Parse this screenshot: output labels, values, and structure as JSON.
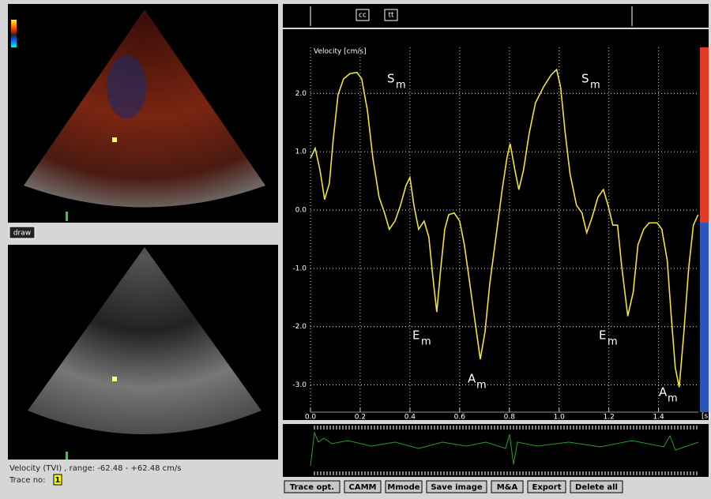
{
  "toolbar": {
    "buttons": [
      "cc",
      "tt"
    ]
  },
  "left_panel": {
    "draw_button": "draw",
    "status": "Velocity (TVI) , range: -62.48 - +62.48 cm/s",
    "trace_label": "Trace no:",
    "trace_number": "1"
  },
  "chart_data": {
    "type": "line",
    "ylabel": "Velocity [cm/s]",
    "xunit": "[s]",
    "x": [
      0,
      0.019,
      0.038,
      0.057,
      0.076,
      0.092,
      0.111,
      0.133,
      0.159,
      0.187,
      0.206,
      0.229,
      0.251,
      0.276,
      0.298,
      0.317,
      0.34,
      0.362,
      0.384,
      0.4,
      0.416,
      0.435,
      0.457,
      0.476,
      0.492,
      0.508,
      0.524,
      0.54,
      0.556,
      0.578,
      0.6,
      0.619,
      0.641,
      0.663,
      0.683,
      0.702,
      0.721,
      0.746,
      0.771,
      0.79,
      0.803,
      0.822,
      0.838,
      0.857,
      0.879,
      0.905,
      0.937,
      0.968,
      0.99,
      1.006,
      1.025,
      1.044,
      1.07,
      1.092,
      1.111,
      1.133,
      1.156,
      1.178,
      1.197,
      1.216,
      1.235,
      1.251,
      1.276,
      1.298,
      1.317,
      1.34,
      1.362,
      1.394,
      1.413,
      1.435,
      1.451,
      1.467,
      1.483,
      1.502,
      1.521,
      1.54,
      1.559
    ],
    "series": [
      {
        "color": "#f2e23a",
        "values": [
          0.89,
          1.06,
          0.69,
          0.18,
          0.46,
          1.23,
          1.98,
          2.25,
          2.34,
          2.36,
          2.25,
          1.71,
          0.89,
          0.22,
          -0.05,
          -0.33,
          -0.19,
          0.08,
          0.42,
          0.56,
          0.08,
          -0.33,
          -0.19,
          -0.46,
          -1.14,
          -1.75,
          -1.0,
          -0.33,
          -0.08,
          -0.05,
          -0.19,
          -0.6,
          -1.27,
          -1.95,
          -2.56,
          -2.09,
          -1.27,
          -0.46,
          0.35,
          0.89,
          1.14,
          0.69,
          0.35,
          0.69,
          1.3,
          1.84,
          2.11,
          2.32,
          2.41,
          2.11,
          1.3,
          0.62,
          0.08,
          -0.05,
          -0.39,
          -0.12,
          0.22,
          0.35,
          0.08,
          -0.26,
          -0.26,
          -0.94,
          -1.82,
          -1.41,
          -0.6,
          -0.33,
          -0.22,
          -0.22,
          -0.33,
          -0.87,
          -1.82,
          -2.7,
          -3.04,
          -2.09,
          -1.0,
          -0.26,
          -0.08
        ]
      }
    ],
    "xlim": [
      0,
      1.56
    ],
    "ylim": [
      -3.44,
      2.79
    ],
    "xticks": [
      {
        "value": 0,
        "label": "0.0"
      },
      {
        "value": 0.2,
        "label": "0.2"
      },
      {
        "value": 0.4,
        "label": "0.4"
      },
      {
        "value": 0.6,
        "label": "0.6"
      },
      {
        "value": 0.8,
        "label": "0.8"
      },
      {
        "value": 1,
        "label": "1.0"
      },
      {
        "value": 1.2,
        "label": "1.2"
      },
      {
        "value": 1.4,
        "label": "1.4"
      }
    ],
    "yticks": [
      {
        "value": 2,
        "label": "2.0"
      },
      {
        "value": 1,
        "label": "1.0"
      },
      {
        "value": 0,
        "label": "0.0"
      },
      {
        "value": -1,
        "label": "-1.0"
      },
      {
        "value": -2,
        "label": "-2.0"
      },
      {
        "value": -3,
        "label": "-3.0"
      }
    ],
    "grid": true,
    "annotations": [
      {
        "text": "S",
        "sub": "m"
      },
      {
        "text": "S",
        "sub": "m"
      },
      {
        "text": "E",
        "sub": "m"
      },
      {
        "text": "E",
        "sub": "m"
      },
      {
        "text": "A",
        "sub": "m"
      },
      {
        "text": "A",
        "sub": "m"
      }
    ]
  },
  "buttons": [
    "Trace opt.",
    "CAMM",
    "Mmode",
    "Save image",
    "M&A",
    "Export",
    "Delete all"
  ]
}
